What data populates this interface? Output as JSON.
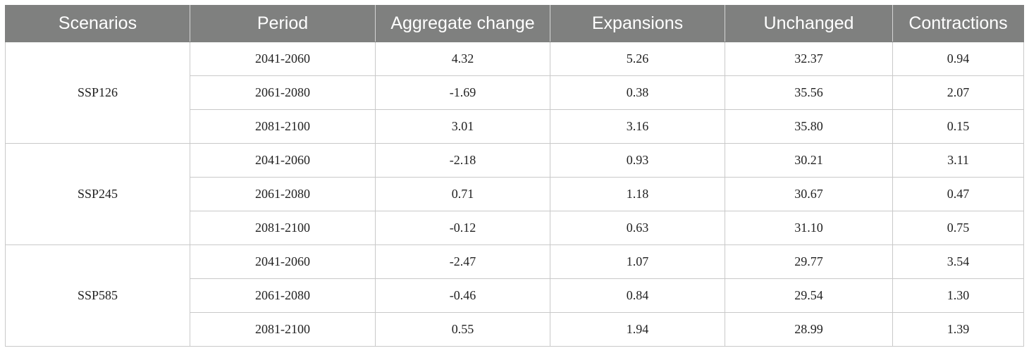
{
  "table": {
    "headers": [
      "Scenarios",
      "Period",
      "Aggregate change",
      "Expansions",
      "Unchanged",
      "Contractions"
    ],
    "groups": [
      {
        "scenario": "SSP126",
        "rows": [
          {
            "period": "2041-2060",
            "aggregate": "4.32",
            "expansions": "5.26",
            "unchanged": "32.37",
            "contractions": "0.94"
          },
          {
            "period": "2061-2080",
            "aggregate": "-1.69",
            "expansions": "0.38",
            "unchanged": "35.56",
            "contractions": "2.07"
          },
          {
            "period": "2081-2100",
            "aggregate": "3.01",
            "expansions": "3.16",
            "unchanged": "35.80",
            "contractions": "0.15"
          }
        ]
      },
      {
        "scenario": "SSP245",
        "rows": [
          {
            "period": "2041-2060",
            "aggregate": "-2.18",
            "expansions": "0.93",
            "unchanged": "30.21",
            "contractions": "3.11"
          },
          {
            "period": "2061-2080",
            "aggregate": "0.71",
            "expansions": "1.18",
            "unchanged": "30.67",
            "contractions": "0.47"
          },
          {
            "period": "2081-2100",
            "aggregate": "-0.12",
            "expansions": "0.63",
            "unchanged": "31.10",
            "contractions": "0.75"
          }
        ]
      },
      {
        "scenario": "SSP585",
        "rows": [
          {
            "period": "2041-2060",
            "aggregate": "-2.47",
            "expansions": "1.07",
            "unchanged": "29.77",
            "contractions": "3.54"
          },
          {
            "period": "2061-2080",
            "aggregate": "-0.46",
            "expansions": "0.84",
            "unchanged": "29.54",
            "contractions": "1.30"
          },
          {
            "period": "2081-2100",
            "aggregate": "0.55",
            "expansions": "1.94",
            "unchanged": "28.99",
            "contractions": "1.39"
          }
        ]
      }
    ]
  },
  "colors": {
    "header_background": "#7f807f",
    "header_text": "#ffffff",
    "grid_line": "#c9c9c9"
  }
}
